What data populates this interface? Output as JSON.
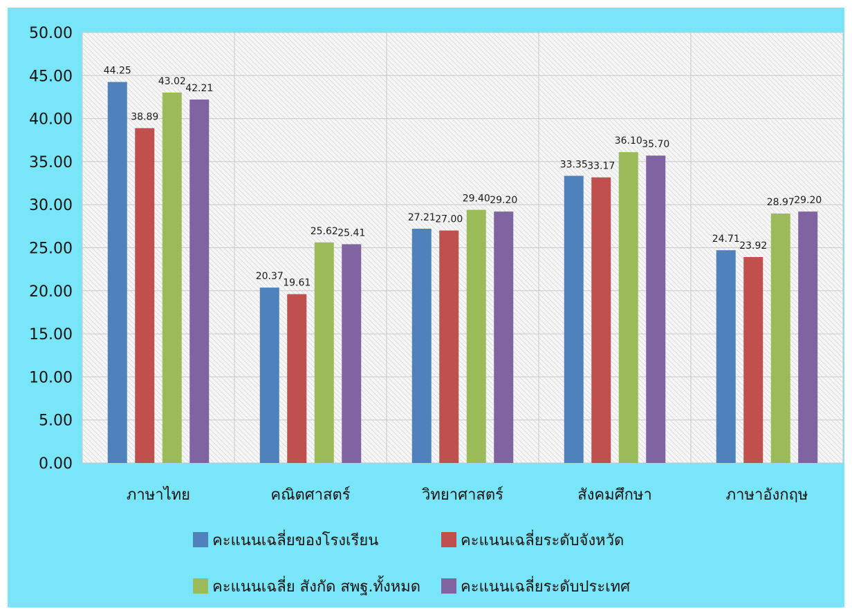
{
  "chart_data": {
    "type": "bar",
    "categories": [
      "ภาษาไทย",
      "คณิตศาสตร์",
      "วิทยาศาสตร์",
      "สังคมศึกษา",
      "ภาษาอังกฤษ"
    ],
    "series": [
      {
        "name": "คะแนนเฉลี่ยของโรงเรียน",
        "values": [
          44.25,
          20.37,
          27.21,
          33.35,
          24.71
        ],
        "color": "#4f81bd"
      },
      {
        "name": "คะแนนเฉลี่ยระดับจังหวัด",
        "values": [
          38.89,
          19.61,
          27.0,
          33.17,
          23.92
        ],
        "color": "#c0504d"
      },
      {
        "name": "คะแนนเฉลี่ย สังกัด สพฐ.ทั้งหมด",
        "values": [
          43.02,
          25.62,
          29.4,
          36.1,
          28.97
        ],
        "color": "#9bbb59"
      },
      {
        "name": "คะแนนเฉลี่ยระดับประเทศ",
        "values": [
          42.21,
          25.41,
          29.2,
          35.7,
          29.2
        ],
        "color": "#8064a2"
      }
    ],
    "value_labels": [
      [
        "44.25",
        "20.37",
        "27.21",
        "33.35",
        "24.71"
      ],
      [
        "38.89",
        "19.61",
        "27.00",
        "33.17",
        "23.92"
      ],
      [
        "43.02",
        "25.62",
        "29.40",
        "36.10",
        "28.97"
      ],
      [
        "42.21",
        "25.41",
        "29.20",
        "35.70",
        "29.20"
      ]
    ],
    "y_ticks": [
      "0.00",
      "5.00",
      "10.00",
      "15.00",
      "20.00",
      "25.00",
      "30.00",
      "35.00",
      "40.00",
      "45.00",
      "50.00"
    ],
    "ylim": [
      0,
      50
    ],
    "grid": true,
    "legend_position": "bottom",
    "title": "",
    "xlabel": "",
    "ylabel": ""
  },
  "colors": {
    "background": "#78e6f8",
    "plot_area": "#f2f2f2",
    "gridline": "#c8c8c8"
  }
}
